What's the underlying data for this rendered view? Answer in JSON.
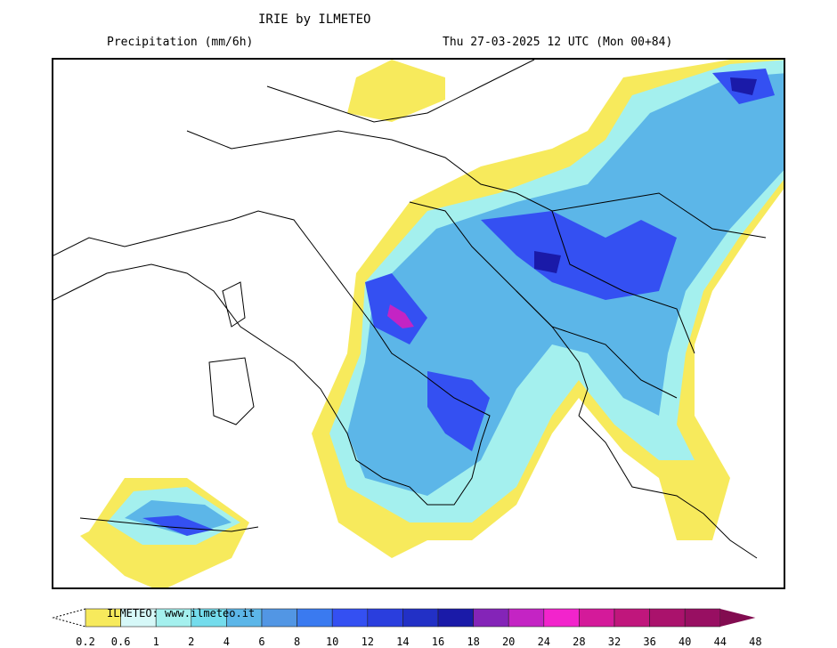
{
  "header": {
    "title": "IRIE by ILMETEO",
    "variable": "Precipitation (mm/6h)",
    "valid_time": "Thu 27-03-2025 12 UTC (Mon 00+84)"
  },
  "legend": {
    "watermark": "ILMETEO: www.ilmeteo.it",
    "ticks": [
      "0.2",
      "0.6",
      "1",
      "2",
      "4",
      "6",
      "8",
      "10",
      "12",
      "14",
      "16",
      "18",
      "20",
      "24",
      "28",
      "32",
      "36",
      "40",
      "44",
      "48"
    ],
    "colors": [
      "#f7ea5c",
      "#d6f8f8",
      "#a4f0ee",
      "#74dcec",
      "#5cb6e8",
      "#5296e4",
      "#3a7af0",
      "#3450f2",
      "#2a3ede",
      "#2230c6",
      "#1a1aa8",
      "#8424b8",
      "#c424c4",
      "#f224cc",
      "#d41a9a",
      "#c0167c",
      "#aa126c",
      "#980f62",
      "#820c50"
    ]
  }
}
